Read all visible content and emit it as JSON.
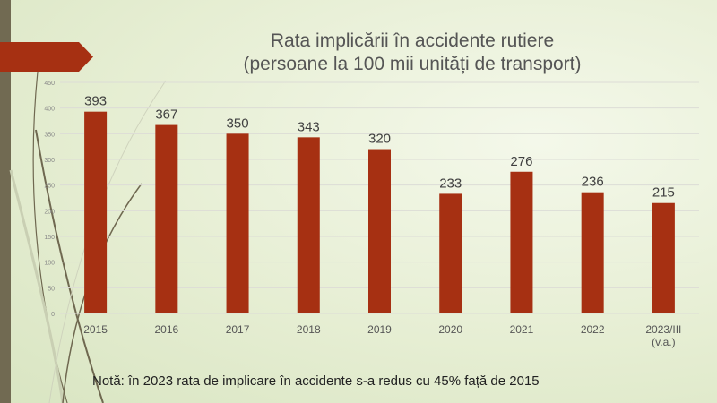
{
  "colors": {
    "bar": "#a63012",
    "banner": "#a63012",
    "strip": "#716a52"
  },
  "chart_data": {
    "type": "bar",
    "title_line1": "Rata implicării în accidente rutiere",
    "title_line2": "(persoane la 100 mii unități de transport)",
    "categories": [
      "2015",
      "2016",
      "2017",
      "2018",
      "2019",
      "2020",
      "2021",
      "2022",
      "2023/III|(v.a.)"
    ],
    "values": [
      393,
      367,
      350,
      343,
      320,
      233,
      276,
      236,
      215
    ],
    "ylim": [
      0,
      450
    ],
    "yticks": [
      0,
      50,
      100,
      150,
      200,
      250,
      300,
      350,
      400,
      450
    ],
    "grid": true,
    "xlabel": "",
    "ylabel": ""
  },
  "note": "Notă: în 2023 rata de implicare în accidente s-a redus cu 45% față de 2015"
}
